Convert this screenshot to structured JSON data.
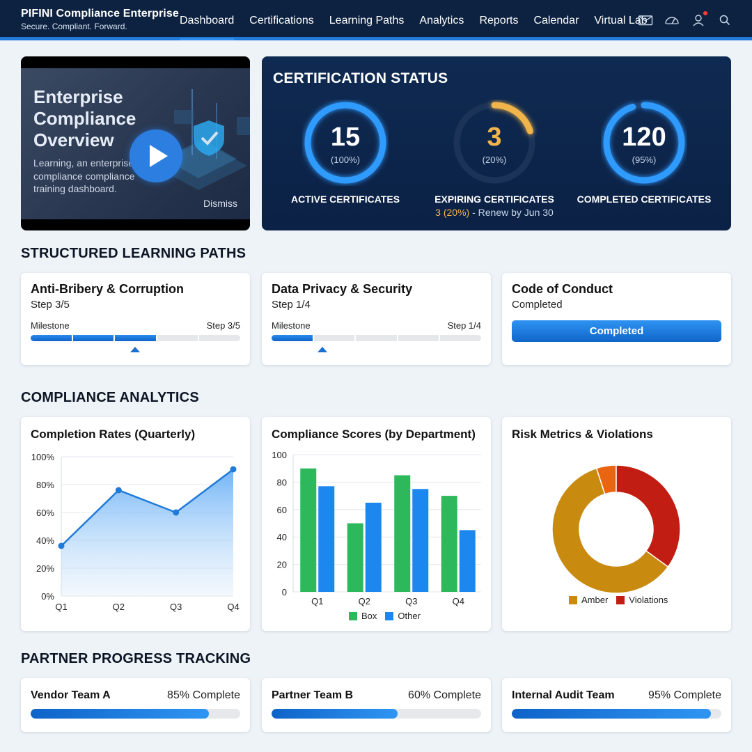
{
  "brand": {
    "title": "PIFINI Compliance Enterprise",
    "tagline": "Secure. Compliant. Forward."
  },
  "nav": {
    "items": [
      "Dashboard",
      "Certifications",
      "Learning Paths",
      "Analytics",
      "Reports",
      "Calendar",
      "Virtual Lab"
    ],
    "active": "Dashboard"
  },
  "header_icons": [
    "mail-icon",
    "dashboard-gauge-icon",
    "user-icon",
    "search-icon"
  ],
  "video": {
    "title": "Enterprise Compliance Overview",
    "description": "Learning, an enterprise compliance compliance training dashboard.",
    "dismiss_label": "Dismiss"
  },
  "certification_status": {
    "heading": "CERTIFICATION STATUS",
    "rings": [
      {
        "value": "15",
        "percent_label": "(100%)",
        "label": "ACTIVE CERTIFICATES",
        "sub": "",
        "fill": 1.0,
        "color": "#2f9bff"
      },
      {
        "value": "3",
        "percent_label": "(20%)",
        "label": "EXPIRING CERTIFICATES",
        "sub_highlight": "3 (20%)",
        "sub": " - Renew by Jun 30",
        "fill": 0.2,
        "color": "#f0b44a"
      },
      {
        "value": "120",
        "percent_label": "(95%)",
        "label": "COMPLETED CERTIFICATES",
        "sub": "",
        "fill": 0.95,
        "color": "#2f9bff"
      }
    ]
  },
  "learning_paths": {
    "heading": "STRUCTURED LEARNING PATHS",
    "items": [
      {
        "title": "Anti-Bribery & Corruption",
        "status": "Step 3/5",
        "milestone_label": "Milestone",
        "step_label": "Step 3/5",
        "steps_done": 3,
        "steps_total": 5
      },
      {
        "title": "Data Privacy & Security",
        "status": "Step 1/4",
        "milestone_label": "Milestone",
        "step_label": "Step 1/4",
        "steps_done": 1,
        "steps_total": 4
      },
      {
        "title": "Code of Conduct",
        "status": "Completed",
        "button_label": "Completed"
      }
    ]
  },
  "analytics": {
    "heading": "COMPLIANCE ANALYTICS",
    "completion": {
      "title": "Completion Rates (Quarterly)",
      "chart_data": {
        "type": "area",
        "categories": [
          "Q1",
          "Q2",
          "Q3",
          "Q4"
        ],
        "values": [
          36,
          76,
          60,
          91
        ],
        "ylim": [
          0,
          100
        ],
        "yticks": [
          "0%",
          "20%",
          "40%",
          "60%",
          "80%",
          "100%"
        ],
        "color": "#1f7ad9"
      }
    },
    "scores": {
      "title": "Compliance Scores (by Department)",
      "chart_data": {
        "type": "bar",
        "categories": [
          "Q1",
          "Q2",
          "Q3",
          "Q4"
        ],
        "series": [
          {
            "name": "Box",
            "values": [
              90,
              50,
              85,
              70
            ],
            "color": "#2eb85c"
          },
          {
            "name": "Other",
            "values": [
              77,
              65,
              75,
              45
            ],
            "color": "#1c87ee"
          }
        ],
        "ylim": [
          0,
          100
        ],
        "yticks": [
          "0",
          "20",
          "40",
          "60",
          "80",
          "100"
        ],
        "legend": "bottom"
      }
    },
    "risk": {
      "title": "Risk Metrics & Violations",
      "chart_data": {
        "type": "pie",
        "series": [
          {
            "name": "Amber",
            "value": 60,
            "color": "#c98a10"
          },
          {
            "name": "Violations",
            "value": 35,
            "color": "#c11d12"
          },
          {
            "name": "",
            "value": 5,
            "color": "#ea6512"
          }
        ],
        "donut": true,
        "legend": "bottom"
      }
    }
  },
  "partner_progress": {
    "heading": "PARTNER PROGRESS TRACKING",
    "items": [
      {
        "name": "Vendor Team A",
        "status": "85% Complete",
        "progress": 0.85
      },
      {
        "name": "Partner Team B",
        "status": "60% Complete",
        "progress": 0.6
      },
      {
        "name": "Internal Audit Team",
        "status": "95% Complete",
        "progress": 0.95
      }
    ]
  }
}
